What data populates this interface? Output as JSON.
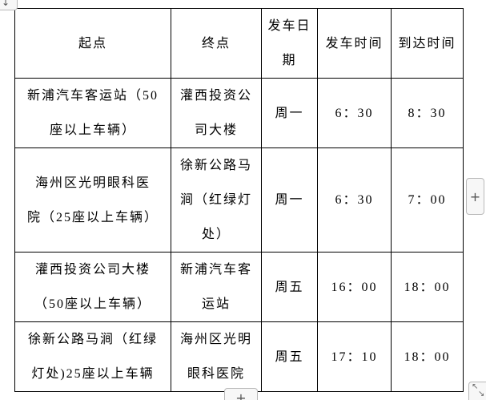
{
  "table": {
    "headers": {
      "origin": "起点",
      "destination": "终点",
      "departure_day": "发车日\n期",
      "departure_time": "发车时间",
      "arrival_time": "到达时间"
    },
    "rows": [
      {
        "origin": "新浦汽车客运站（50\n座以上车辆）",
        "destination": "灌西投资公\n司大楼",
        "departure_day": "周一",
        "departure_time": "6：30",
        "arrival_time": "8：30"
      },
      {
        "origin": "海州区光明眼科医\n院（25座以上车辆）",
        "destination": "徐新公路马\n涧（红绿灯\n处）",
        "departure_day": "周一",
        "departure_time": "6：30",
        "arrival_time": "7：00"
      },
      {
        "origin": "灌西投资公司大楼\n（50座以上车辆）",
        "destination": "新浦汽车客\n运站",
        "departure_day": "周五",
        "departure_time": "16：00",
        "arrival_time": "18：00"
      },
      {
        "origin": "徐新公路马涧（红绿\n灯处)25座以上车辆",
        "destination": "海州区光明\n眼科医院",
        "departure_day": "周五",
        "departure_time": "17：10",
        "arrival_time": "18：00"
      }
    ]
  },
  "controls": {
    "scroll_down": "↓",
    "add_right": "+",
    "add_bottom": "+",
    "expand_nw": "↖",
    "expand_se": "↘"
  },
  "colors": {
    "background": "#ffffff",
    "table_border": "#000000",
    "text": "#000000",
    "control_bg": "#f7f7f7",
    "control_border": "#b9b9b9",
    "control_icon": "#555555"
  }
}
